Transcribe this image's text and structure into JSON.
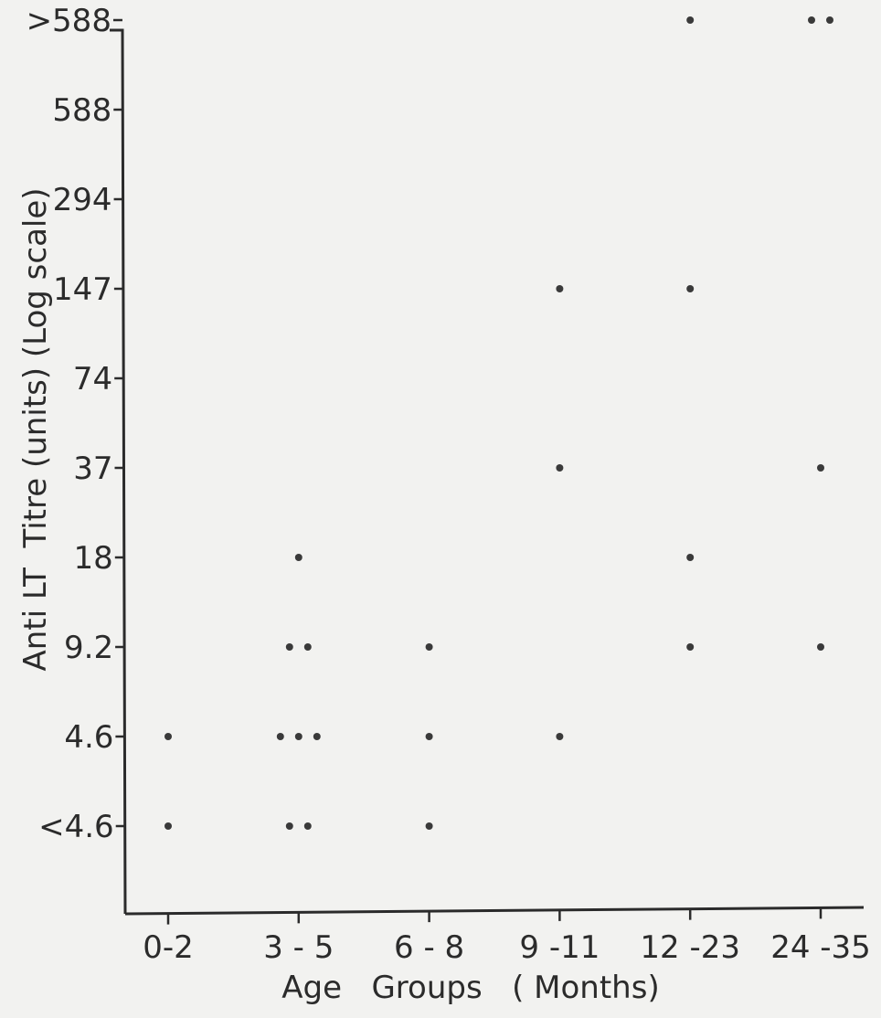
{
  "chart_data": {
    "type": "scatter",
    "xlabel": "Age   Groups   ( Months)",
    "ylabel": "Anti LT  Titre (units) (Log scale)",
    "categories": [
      "0-2",
      "3 - 5",
      "6 - 8",
      "9 -11",
      "12 -23",
      "24 -35"
    ],
    "y_ticks": [
      "<4.6",
      "4.6",
      "9.2",
      "18",
      "37",
      "74",
      "147",
      "294",
      "588",
      ">588"
    ],
    "y_scale": "log (ordinal titre levels)",
    "grid": false,
    "legend": "none",
    "points": [
      {
        "group": "0-2",
        "titre": "4.6",
        "count": 1
      },
      {
        "group": "0-2",
        "titre": "<4.6",
        "count": 1
      },
      {
        "group": "3 - 5",
        "titre": "18",
        "count": 1
      },
      {
        "group": "3 - 5",
        "titre": "9.2",
        "count": 2
      },
      {
        "group": "3 - 5",
        "titre": "4.6",
        "count": 3
      },
      {
        "group": "3 - 5",
        "titre": "<4.6",
        "count": 2
      },
      {
        "group": "6 - 8",
        "titre": "9.2",
        "count": 1
      },
      {
        "group": "6 - 8",
        "titre": "4.6",
        "count": 1
      },
      {
        "group": "6 - 8",
        "titre": "<4.6",
        "count": 1
      },
      {
        "group": "9 -11",
        "titre": "147",
        "count": 1
      },
      {
        "group": "9 -11",
        "titre": "37",
        "count": 1
      },
      {
        "group": "9 -11",
        "titre": "4.6",
        "count": 1
      },
      {
        "group": "12 -23",
        "titre": ">588",
        "count": 1
      },
      {
        "group": "12 -23",
        "titre": "147",
        "count": 1
      },
      {
        "group": "12 -23",
        "titre": "18",
        "count": 1
      },
      {
        "group": "12 -23",
        "titre": "9.2",
        "count": 1
      },
      {
        "group": "24 -35",
        "titre": ">588",
        "count": 2
      },
      {
        "group": "24 -35",
        "titre": "37",
        "count": 1
      },
      {
        "group": "24 -35",
        "titre": "9.2",
        "count": 1
      }
    ]
  }
}
